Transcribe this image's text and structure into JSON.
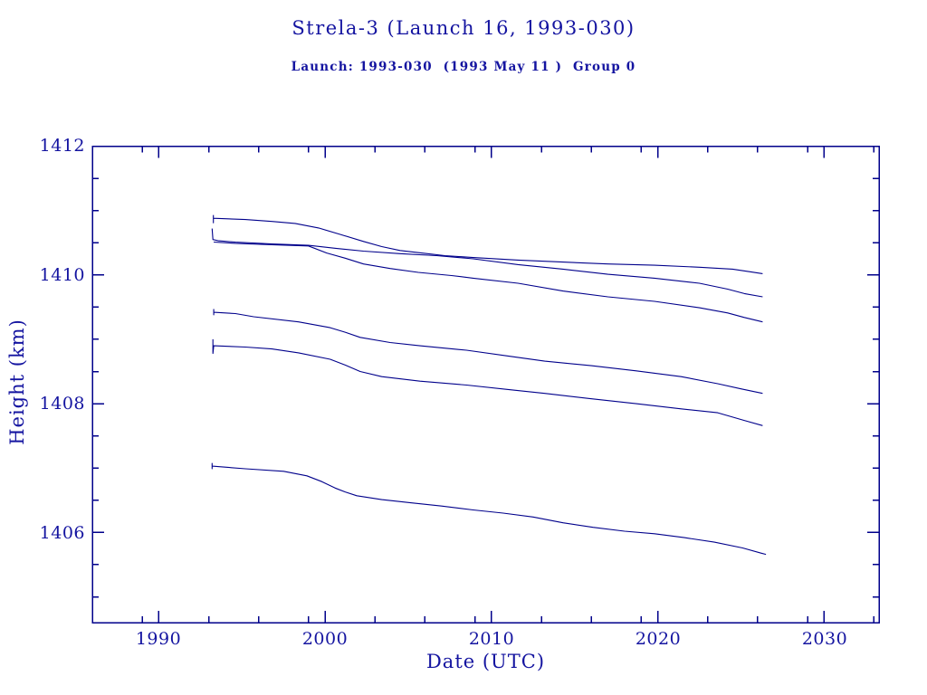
{
  "header": {
    "title": "Strela-3 (Launch 16, 1993-030)",
    "subtitle": "Launch: 1993-030  (1993 May 11 )  Group 0"
  },
  "colors": {
    "background": "#ffffff",
    "text": "#1414a0",
    "line": "#00008b",
    "frame": "#00008b"
  },
  "axes": {
    "x": {
      "label": "Date (UTC)",
      "tick_labels": [
        "1990",
        "2000",
        "2010",
        "2020",
        "2030"
      ]
    },
    "y": {
      "label": "Height (km)",
      "tick_labels": [
        "1412",
        "1410",
        "1408",
        "1406"
      ]
    }
  },
  "chart_data": {
    "type": "line",
    "title": "Strela-3 (Launch 16, 1993-030)",
    "subtitle": "Launch: 1993-030  (1993 May 11 )  Group 0",
    "xlabel": "Date (UTC)",
    "ylabel": "Height (km)",
    "xlim": [
      1986.0,
      2033.3
    ],
    "ylim": [
      1404.6,
      1412.0
    ],
    "grid": false,
    "legend": "none",
    "x_major_ticks": [
      1990,
      2000,
      2010,
      2020,
      2030
    ],
    "x_minor_ticks": [
      1989,
      1993,
      1996,
      1999,
      2003,
      2006,
      2009,
      2013,
      2016,
      2019,
      2023,
      2026,
      2029,
      2033
    ],
    "y_major_ticks": [
      1412,
      1410,
      1408,
      1406
    ],
    "y_minor_ticks": [
      1411.5,
      1411,
      1410.5,
      1409.5,
      1409,
      1408.5,
      1407.5,
      1407,
      1406.5,
      1405.5,
      1405
    ],
    "series": [
      {
        "name": "series-1",
        "points": [
          [
            1993.28,
            1410.93
          ],
          [
            1993.28,
            1410.81
          ],
          [
            1993.28,
            1410.88
          ],
          [
            1995.2,
            1410.86
          ],
          [
            1996.8,
            1410.83
          ],
          [
            1998.2,
            1410.8
          ],
          [
            1999.6,
            1410.73
          ],
          [
            2000.9,
            1410.63
          ],
          [
            2002.3,
            1410.52
          ],
          [
            2003.4,
            1410.44
          ],
          [
            2004.5,
            1410.38
          ],
          [
            2005.8,
            1410.34
          ],
          [
            2007.2,
            1410.3
          ],
          [
            2008.9,
            1410.27
          ],
          [
            2011.6,
            1410.23
          ],
          [
            2014.3,
            1410.2
          ],
          [
            2017.0,
            1410.17
          ],
          [
            2019.8,
            1410.15
          ],
          [
            2022.5,
            1410.12
          ],
          [
            2024.5,
            1410.09
          ],
          [
            2025.5,
            1410.05
          ],
          [
            2026.3,
            1410.02
          ]
        ]
      },
      {
        "name": "series-2",
        "points": [
          [
            1993.2,
            1410.72
          ],
          [
            1993.25,
            1410.55
          ],
          [
            1993.6,
            1410.53
          ],
          [
            1994.6,
            1410.51
          ],
          [
            1996.8,
            1410.48
          ],
          [
            1999.0,
            1410.46
          ],
          [
            2000.7,
            1410.41
          ],
          [
            2002.3,
            1410.37
          ],
          [
            2004.5,
            1410.33
          ],
          [
            2006.7,
            1410.3
          ],
          [
            2008.9,
            1410.25
          ],
          [
            2011.6,
            1410.16
          ],
          [
            2014.3,
            1410.09
          ],
          [
            2017.0,
            1410.01
          ],
          [
            2019.8,
            1409.95
          ],
          [
            2022.5,
            1409.87
          ],
          [
            2024.2,
            1409.78
          ],
          [
            2025.2,
            1409.71
          ],
          [
            2026.3,
            1409.66
          ]
        ]
      },
      {
        "name": "series-3",
        "points": [
          [
            1993.3,
            1410.51
          ],
          [
            1994.6,
            1410.49
          ],
          [
            1996.8,
            1410.47
          ],
          [
            1999.0,
            1410.45
          ],
          [
            2000.1,
            1410.34
          ],
          [
            2001.2,
            1410.26
          ],
          [
            2002.3,
            1410.17
          ],
          [
            2003.9,
            1410.1
          ],
          [
            2005.6,
            1410.04
          ],
          [
            2007.6,
            1409.99
          ],
          [
            2008.9,
            1409.95
          ],
          [
            2011.6,
            1409.87
          ],
          [
            2014.3,
            1409.75
          ],
          [
            2017.0,
            1409.66
          ],
          [
            2019.8,
            1409.59
          ],
          [
            2022.5,
            1409.49
          ],
          [
            2024.2,
            1409.41
          ],
          [
            2025.2,
            1409.34
          ],
          [
            2026.3,
            1409.27
          ]
        ]
      },
      {
        "name": "series-4",
        "points": [
          [
            1993.3,
            1409.47
          ],
          [
            1993.3,
            1409.38
          ],
          [
            1993.3,
            1409.42
          ],
          [
            1994.6,
            1409.4
          ],
          [
            1995.7,
            1409.35
          ],
          [
            1998.4,
            1409.27
          ],
          [
            2000.3,
            1409.18
          ],
          [
            2001.2,
            1409.11
          ],
          [
            2002.1,
            1409.03
          ],
          [
            2003.9,
            1408.95
          ],
          [
            2005.7,
            1408.9
          ],
          [
            2008.5,
            1408.83
          ],
          [
            2011.0,
            1408.74
          ],
          [
            2013.2,
            1408.66
          ],
          [
            2016.0,
            1408.59
          ],
          [
            2018.7,
            1408.51
          ],
          [
            2021.4,
            1408.42
          ],
          [
            2023.6,
            1408.31
          ],
          [
            2025.0,
            1408.23
          ],
          [
            2026.3,
            1408.16
          ]
        ]
      },
      {
        "name": "series-5",
        "points": [
          [
            1993.25,
            1409.0
          ],
          [
            1993.25,
            1408.78
          ],
          [
            1993.3,
            1408.9
          ],
          [
            1995.2,
            1408.88
          ],
          [
            1996.8,
            1408.85
          ],
          [
            1998.4,
            1408.79
          ],
          [
            2000.3,
            1408.69
          ],
          [
            2001.2,
            1408.6
          ],
          [
            2002.1,
            1408.5
          ],
          [
            2003.4,
            1408.42
          ],
          [
            2005.7,
            1408.35
          ],
          [
            2008.5,
            1408.29
          ],
          [
            2011.0,
            1408.22
          ],
          [
            2013.2,
            1408.16
          ],
          [
            2015.9,
            1408.08
          ],
          [
            2018.7,
            1408.0
          ],
          [
            2021.4,
            1407.92
          ],
          [
            2023.6,
            1407.86
          ],
          [
            2025.2,
            1407.74
          ],
          [
            2026.3,
            1407.66
          ]
        ]
      },
      {
        "name": "series-6",
        "points": [
          [
            1993.2,
            1407.08
          ],
          [
            1993.2,
            1406.99
          ],
          [
            1993.2,
            1407.03
          ],
          [
            1995.2,
            1406.99
          ],
          [
            1997.5,
            1406.95
          ],
          [
            1998.9,
            1406.88
          ],
          [
            1999.8,
            1406.79
          ],
          [
            2000.6,
            1406.69
          ],
          [
            2001.2,
            1406.63
          ],
          [
            2001.9,
            1406.57
          ],
          [
            2003.4,
            1406.51
          ],
          [
            2005.2,
            1406.46
          ],
          [
            2007.0,
            1406.41
          ],
          [
            2008.9,
            1406.35
          ],
          [
            2010.7,
            1406.3
          ],
          [
            2012.5,
            1406.24
          ],
          [
            2014.3,
            1406.15
          ],
          [
            2016.1,
            1406.08
          ],
          [
            2018.0,
            1406.02
          ],
          [
            2019.8,
            1405.98
          ],
          [
            2021.6,
            1405.92
          ],
          [
            2023.4,
            1405.85
          ],
          [
            2025.1,
            1405.76
          ],
          [
            2026.2,
            1405.68
          ],
          [
            2026.5,
            1405.66
          ]
        ]
      }
    ]
  }
}
